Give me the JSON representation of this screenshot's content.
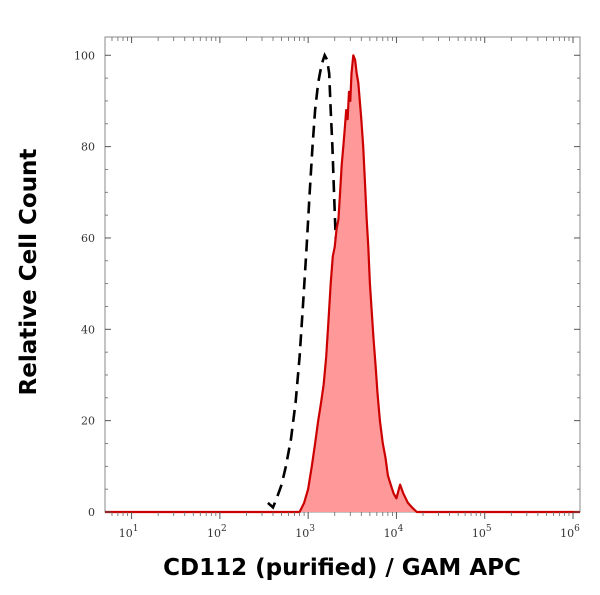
{
  "chart_data": {
    "type": "area",
    "title": "",
    "xlabel": "CD112 (purified) / GAM APC",
    "ylabel": "Relative Cell Count",
    "x_scale": "log",
    "xlim": [
      5,
      1200000
    ],
    "ylim": [
      0,
      104
    ],
    "grid": false,
    "x_ticks": [
      {
        "value": 10,
        "mantissa": "10",
        "exp": "1"
      },
      {
        "value": 100,
        "mantissa": "10",
        "exp": "2"
      },
      {
        "value": 1000,
        "mantissa": "10",
        "exp": "3"
      },
      {
        "value": 10000,
        "mantissa": "10",
        "exp": "4"
      },
      {
        "value": 100000,
        "mantissa": "10",
        "exp": "5"
      },
      {
        "value": 1000000,
        "mantissa": "10",
        "exp": "6"
      }
    ],
    "y_ticks": [
      0,
      20,
      40,
      60,
      80,
      100
    ],
    "series": [
      {
        "role": "control",
        "style": "dashed",
        "color": "#000000",
        "points": [
          [
            350,
            2
          ],
          [
            400,
            1
          ],
          [
            440,
            3
          ],
          [
            500,
            6
          ],
          [
            560,
            10
          ],
          [
            640,
            16
          ],
          [
            720,
            24
          ],
          [
            800,
            34
          ],
          [
            880,
            46
          ],
          [
            960,
            58
          ],
          [
            1040,
            70
          ],
          [
            1120,
            80
          ],
          [
            1200,
            88
          ],
          [
            1300,
            94
          ],
          [
            1420,
            98
          ],
          [
            1540,
            100
          ],
          [
            1640,
            99
          ],
          [
            1730,
            96
          ],
          [
            1800,
            88
          ],
          [
            1880,
            80
          ],
          [
            1960,
            70
          ],
          [
            2050,
            60
          ],
          [
            2150,
            48
          ],
          [
            2250,
            36
          ],
          [
            2380,
            26
          ],
          [
            2520,
            18
          ],
          [
            2680,
            12
          ],
          [
            2860,
            8
          ],
          [
            3060,
            5
          ],
          [
            3300,
            3
          ],
          [
            3600,
            2
          ],
          [
            4000,
            1
          ],
          [
            4500,
            0
          ]
        ]
      },
      {
        "role": "stained",
        "style": "filled",
        "color": "#cc0000",
        "fill": "#ff9999",
        "points": [
          [
            5,
            0
          ],
          [
            800,
            0
          ],
          [
            900,
            2
          ],
          [
            1000,
            5
          ],
          [
            1100,
            10
          ],
          [
            1200,
            15
          ],
          [
            1300,
            20
          ],
          [
            1400,
            24
          ],
          [
            1500,
            28
          ],
          [
            1600,
            34
          ],
          [
            1700,
            42
          ],
          [
            1800,
            50
          ],
          [
            1900,
            56
          ],
          [
            2000,
            58
          ],
          [
            2100,
            62
          ],
          [
            2200,
            64
          ],
          [
            2300,
            70
          ],
          [
            2400,
            76
          ],
          [
            2500,
            80
          ],
          [
            2600,
            84
          ],
          [
            2700,
            88
          ],
          [
            2800,
            86
          ],
          [
            2900,
            92
          ],
          [
            3000,
            90
          ],
          [
            3100,
            96
          ],
          [
            3250,
            100
          ],
          [
            3400,
            99
          ],
          [
            3550,
            96
          ],
          [
            3700,
            94
          ],
          [
            3850,
            90
          ],
          [
            4000,
            86
          ],
          [
            4200,
            80
          ],
          [
            4400,
            72
          ],
          [
            4600,
            64
          ],
          [
            4800,
            58
          ],
          [
            5000,
            50
          ],
          [
            5250,
            44
          ],
          [
            5500,
            38
          ],
          [
            5800,
            32
          ],
          [
            6100,
            26
          ],
          [
            6500,
            20
          ],
          [
            7000,
            15
          ],
          [
            7500,
            12
          ],
          [
            8000,
            8
          ],
          [
            8600,
            6
          ],
          [
            9300,
            4
          ],
          [
            10000,
            3
          ],
          [
            11000,
            6
          ],
          [
            12000,
            4
          ],
          [
            13500,
            2
          ],
          [
            15000,
            1
          ],
          [
            17000,
            0
          ],
          [
            1200000,
            0
          ]
        ]
      }
    ]
  }
}
